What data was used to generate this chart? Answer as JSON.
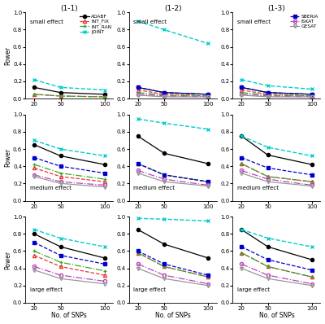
{
  "x": [
    20,
    50,
    100
  ],
  "col_titles": [
    "(1-1)",
    "(1-2)",
    "(1-3)"
  ],
  "row_labels": [
    "small effect",
    "medium effect",
    "large effect"
  ],
  "plots": {
    "r0c0": {
      "ADABF": [
        0.13,
        0.07,
        0.05
      ],
      "INT_FIX": [
        0.05,
        0.03,
        0.02
      ],
      "INT_RAN": [
        0.05,
        0.03,
        0.02
      ],
      "JOINT": [
        0.22,
        0.13,
        0.1
      ],
      "SBERIA": null,
      "iSKAT": null,
      "GESAT": null
    },
    "r0c1": {
      "ADABF": [
        0.13,
        0.07,
        0.05
      ],
      "INT_FIX": [
        0.1,
        0.05,
        0.03
      ],
      "INT_RAN": [
        0.07,
        0.04,
        0.03
      ],
      "JOINT": [
        0.9,
        0.8,
        0.64
      ],
      "SBERIA": [
        0.13,
        0.07,
        0.05
      ],
      "iSKAT": [
        0.05,
        0.03,
        0.02
      ],
      "GESAT": [
        0.04,
        0.02,
        0.02
      ]
    },
    "r0c2": {
      "ADABF": [
        0.13,
        0.07,
        0.05
      ],
      "INT_FIX": [
        0.1,
        0.05,
        0.03
      ],
      "INT_RAN": [
        0.07,
        0.04,
        0.03
      ],
      "JOINT": [
        0.22,
        0.15,
        0.11
      ],
      "SBERIA": [
        0.13,
        0.07,
        0.05
      ],
      "iSKAT": [
        0.05,
        0.03,
        0.02
      ],
      "GESAT": [
        0.04,
        0.02,
        0.02
      ]
    },
    "r1c0": {
      "ADABF": [
        0.65,
        0.52,
        0.42
      ],
      "INT_FIX": [
        0.38,
        0.28,
        0.22
      ],
      "INT_RAN": [
        0.42,
        0.32,
        0.25
      ],
      "JOINT": [
        0.7,
        0.6,
        0.52
      ],
      "SBERIA": [
        0.5,
        0.4,
        0.32
      ],
      "iSKAT": [
        0.3,
        0.22,
        0.18
      ],
      "GESAT": [
        0.28,
        0.2,
        0.16
      ]
    },
    "r1c1": {
      "ADABF": [
        0.75,
        0.55,
        0.43
      ],
      "INT_FIX": [
        0.43,
        0.3,
        0.22
      ],
      "INT_RAN": [
        0.43,
        0.3,
        0.22
      ],
      "JOINT": [
        0.95,
        0.9,
        0.83
      ],
      "SBERIA": [
        0.43,
        0.3,
        0.22
      ],
      "iSKAT": [
        0.35,
        0.25,
        0.18
      ],
      "GESAT": [
        0.32,
        0.22,
        0.17
      ]
    },
    "r1c2": {
      "ADABF": [
        0.75,
        0.53,
        0.42
      ],
      "INT_FIX": [
        0.43,
        0.28,
        0.22
      ],
      "INT_RAN": [
        0.43,
        0.28,
        0.22
      ],
      "JOINT": [
        0.75,
        0.62,
        0.52
      ],
      "SBERIA": [
        0.5,
        0.38,
        0.3
      ],
      "iSKAT": [
        0.35,
        0.25,
        0.18
      ],
      "GESAT": [
        0.32,
        0.22,
        0.17
      ]
    },
    "r2c0": {
      "ADABF": [
        0.8,
        0.65,
        0.52
      ],
      "INT_FIX": [
        0.55,
        0.42,
        0.32
      ],
      "INT_RAN": [
        0.6,
        0.47,
        0.37
      ],
      "JOINT": [
        0.85,
        0.75,
        0.65
      ],
      "SBERIA": [
        0.7,
        0.55,
        0.45
      ],
      "iSKAT": [
        0.42,
        0.32,
        0.25
      ],
      "GESAT": [
        0.38,
        0.28,
        0.22
      ]
    },
    "r2c1": {
      "ADABF": [
        0.85,
        0.68,
        0.52
      ],
      "INT_FIX": [
        0.58,
        0.42,
        0.3
      ],
      "INT_RAN": [
        0.58,
        0.42,
        0.3
      ],
      "JOINT": [
        0.98,
        0.97,
        0.95
      ],
      "SBERIA": [
        0.6,
        0.45,
        0.32
      ],
      "iSKAT": [
        0.45,
        0.32,
        0.22
      ],
      "GESAT": [
        0.4,
        0.28,
        0.2
      ]
    },
    "r2c2": {
      "ADABF": [
        0.85,
        0.65,
        0.5
      ],
      "INT_FIX": [
        0.58,
        0.42,
        0.3
      ],
      "INT_RAN": [
        0.58,
        0.42,
        0.3
      ],
      "JOINT": [
        0.85,
        0.75,
        0.65
      ],
      "SBERIA": [
        0.65,
        0.5,
        0.38
      ],
      "iSKAT": [
        0.45,
        0.32,
        0.22
      ],
      "GESAT": [
        0.4,
        0.28,
        0.2
      ]
    }
  },
  "colors": {
    "ADABF": "#000000",
    "INT_FIX": "#EE3333",
    "INT_RAN": "#33AA33",
    "JOINT": "#00CCCC",
    "SBERIA": "#0000CC",
    "iSKAT": "#BB44BB",
    "GESAT": "#999999"
  },
  "markers": {
    "ADABF": "o",
    "INT_FIX": "^",
    "INT_RAN": "+",
    "JOINT": "x",
    "SBERIA": "s",
    "iSKAT": "o",
    "GESAT": "v"
  }
}
